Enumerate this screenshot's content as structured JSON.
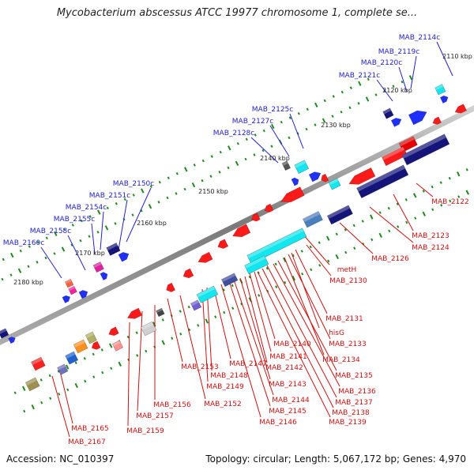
{
  "title": "Mycobacterium abscessus ATCC 19977 chromosome 1, complete se...",
  "footer": {
    "accession": "Accession: NC_010397",
    "stats": "Topology: circular; Length: 5,067,172 bp; Genes: 4,970"
  },
  "colors": {
    "backbone": "#8c8c8c",
    "forward_label": "#2222cc",
    "reverse_label": "#d01010",
    "tick": "#1e8a1e"
  },
  "kbp_ticks": [
    "2110 kbp",
    "2120 kbp",
    "2130 kbp",
    "2140 kbp",
    "2150 kbp",
    "2160 kbp",
    "2170 kbp",
    "2180 kbp"
  ],
  "forward_labels": [
    "MAB_2114c",
    "MAB_2119c",
    "MAB_2120c",
    "MAB_2121c",
    "MAB_2125c",
    "MAB_2127c",
    "MAB_2128c",
    "MAB_2150c",
    "MAB_2151c",
    "MAB_2154c",
    "MAB_2155c",
    "MAB_2158c",
    "MAB_2160c"
  ],
  "reverse_labels": [
    "MAB_2122",
    "MAB_2123",
    "MAB_2124",
    "MAB_2126",
    "metH",
    "MAB_2130",
    "MAB_2131",
    "hisG",
    "MAB_2133",
    "MAB_2134",
    "MAB_2135",
    "MAB_2136",
    "MAB_2137",
    "MAB_2138",
    "MAB_2139",
    "MAB_2140",
    "MAB_2141",
    "MAB_2142",
    "MAB_2143",
    "MAB_2144",
    "MAB_2145",
    "MAB_2146",
    "MAB_2147",
    "MAB_2148",
    "MAB_2149",
    "MAB_2152",
    "MAB_2153",
    "MAB_2156",
    "MAB_2157",
    "MAB_2159",
    "MAB_2165",
    "MAB_2167"
  ]
}
